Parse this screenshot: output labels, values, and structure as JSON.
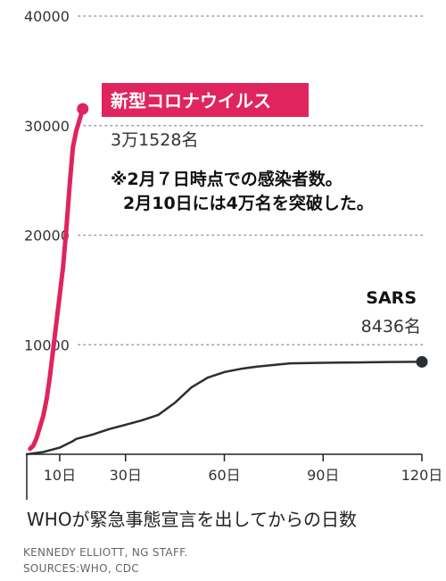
{
  "chart_data": {
    "type": "line",
    "xlabel": "WHOが緊急事態宣言を出してからの日数",
    "ylabel": "",
    "xlim": [
      0,
      120
    ],
    "ylim": [
      0,
      40000
    ],
    "x_ticks": [
      {
        "value": 10,
        "label": "10日"
      },
      {
        "value": 30,
        "label": "30日"
      },
      {
        "value": 60,
        "label": "60日"
      },
      {
        "value": 90,
        "label": "90日"
      },
      {
        "value": 120,
        "label": "120日"
      }
    ],
    "y_ticks": [
      {
        "value": 10000,
        "label": "10000"
      },
      {
        "value": 20000,
        "label": "20000"
      },
      {
        "value": 30000,
        "label": "30000"
      },
      {
        "value": 40000,
        "label": "40000"
      }
    ],
    "grid": "horizontal dotted",
    "series": [
      {
        "name": "新型コロナウイルス",
        "count_label": "3万1528名",
        "color": "#e0245e",
        "x": [
          1,
          2,
          3,
          4,
          5,
          6,
          7,
          8,
          9,
          10,
          11,
          12,
          13,
          14,
          15,
          16,
          17
        ],
        "y": [
          500,
          800,
          1500,
          2500,
          3500,
          5000,
          7000,
          9500,
          12000,
          14500,
          17000,
          20500,
          24500,
          28000,
          29500,
          30500,
          31528
        ]
      },
      {
        "name": "SARS",
        "count_label": "8436名",
        "color": "#2b2f33",
        "x": [
          0,
          5,
          10,
          14,
          15,
          20,
          25,
          30,
          35,
          40,
          45,
          50,
          55,
          60,
          65,
          70,
          80,
          90,
          100,
          110,
          120
        ],
        "y": [
          0,
          200,
          600,
          1200,
          1400,
          1800,
          2300,
          2700,
          3100,
          3600,
          4700,
          6100,
          7000,
          7500,
          7800,
          8000,
          8300,
          8350,
          8380,
          8420,
          8436
        ]
      }
    ],
    "annotations": [
      {
        "text_line1": "※2月７日時点での感染者数。",
        "text_line2": "2月10日には4万名を突破した。"
      }
    ],
    "credits": [
      "KENNEDY ELLIOTT, NG STAFF.",
      "SOURCES:WHO, CDC"
    ]
  }
}
